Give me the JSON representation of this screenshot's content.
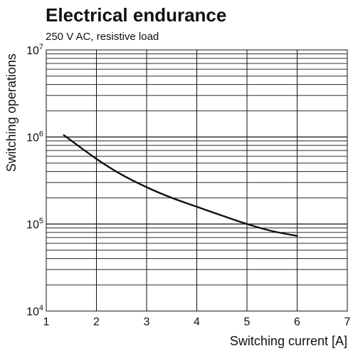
{
  "chart_data": {
    "type": "line",
    "title": "Electrical endurance",
    "subtitle": "250 V AC, resistive load",
    "xlabel": "Switching current [A]",
    "ylabel": "Switching operations",
    "xlim": [
      1,
      7
    ],
    "ylim": [
      10000,
      10000000
    ],
    "yscale": "log",
    "grid": true,
    "x_ticks": [
      "1",
      "2",
      "3",
      "4",
      "5",
      "6",
      "7"
    ],
    "y_ticks": [
      {
        "base": "10",
        "exp": "4"
      },
      {
        "base": "10",
        "exp": "5"
      },
      {
        "base": "10",
        "exp": "6"
      },
      {
        "base": "10",
        "exp": "7"
      }
    ],
    "series": [
      {
        "color": "#111111",
        "x": [
          1.35,
          2.0,
          2.5,
          3.0,
          3.5,
          4.0,
          4.5,
          5.0,
          5.5,
          6.0
        ],
        "y": [
          1050000,
          560000,
          370000,
          265000,
          200000,
          158000,
          125000,
          100000,
          83000,
          73000
        ]
      }
    ]
  }
}
